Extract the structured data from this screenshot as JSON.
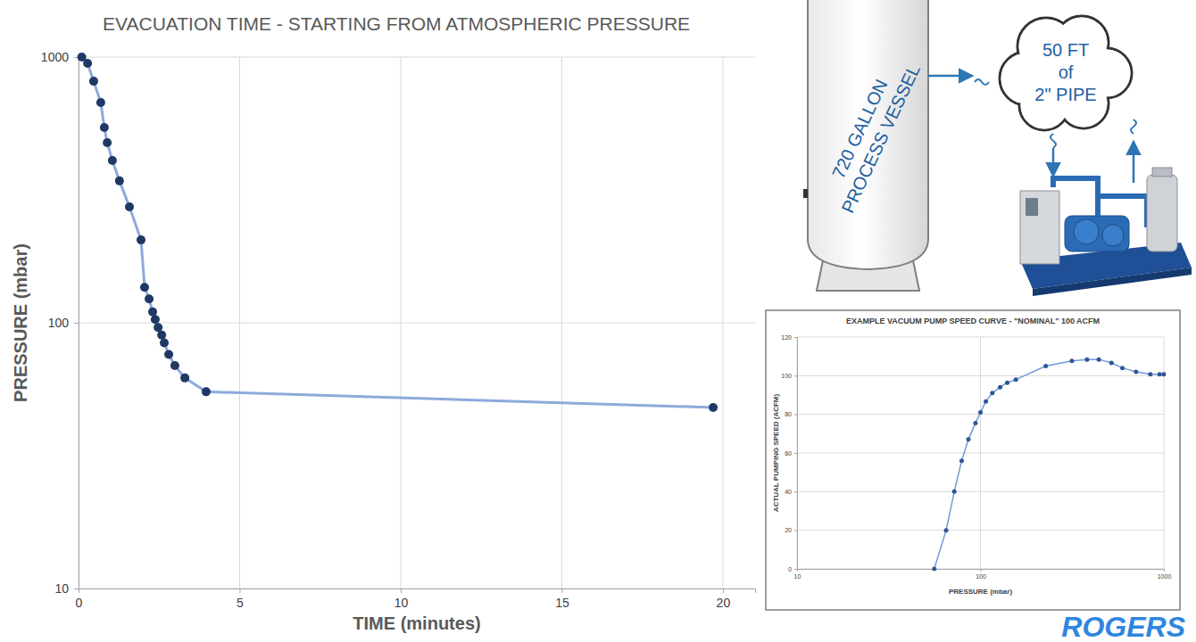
{
  "chart_data": [
    {
      "type": "line",
      "title": "EVACUATION TIME - STARTING FROM ATMOSPHERIC PRESSURE",
      "xlabel": "TIME (minutes)",
      "ylabel": "PRESSURE (mbar)",
      "x": [
        0.1,
        0.28,
        0.47,
        0.69,
        0.8,
        0.89,
        1.05,
        1.27,
        1.58,
        1.94,
        2.05,
        2.19,
        2.3,
        2.38,
        2.47,
        2.58,
        2.66,
        2.8,
        2.99,
        3.3,
        3.96,
        19.7
      ],
      "values": [
        1000,
        947,
        811,
        674,
        543,
        476,
        408,
        342,
        273,
        205,
        136,
        123,
        110,
        103,
        96,
        90,
        84,
        76,
        69,
        62,
        55,
        48
      ],
      "color": "#8eaadb",
      "marker": "circle",
      "log": "y",
      "grid": true,
      "xlim": [
        0,
        21
      ],
      "xticks": [
        0,
        5,
        10,
        15,
        20
      ],
      "ylim": [
        10,
        1000
      ],
      "yticks": [
        10,
        100,
        1000
      ]
    },
    {
      "type": "line",
      "title": "EXAMPLE VACUUM PUMP SPEED CURVE - \"NOMINAL\" 100 ACFM",
      "xlabel": "PRESSURE (mbar)",
      "ylabel": "ACTUAL PUMPING SPEED (ACFM)",
      "x": [
        56,
        65,
        72,
        79,
        86,
        94,
        100,
        107,
        116,
        128,
        140,
        156,
        227,
        315,
        381,
        442,
        518,
        594,
        705,
        844,
        948,
        1000
      ],
      "values": [
        0,
        20,
        40,
        56,
        67,
        75.5,
        81,
        86.7,
        91,
        94,
        96.4,
        98,
        105,
        107.6,
        108.4,
        108.4,
        106.6,
        104,
        102,
        100.7,
        100.7,
        100.7
      ],
      "color": "#6f9bd8",
      "marker": "circle",
      "log": "x",
      "grid": true,
      "xlim": [
        10,
        1000
      ],
      "xticks": [
        10,
        100,
        1000
      ],
      "ylim": [
        0,
        120
      ],
      "yticks": [
        0,
        20,
        40,
        60,
        80,
        100,
        120
      ]
    }
  ],
  "diagram": {
    "vessel_label": [
      "720 GALLON",
      "PROCESS VESSEL"
    ],
    "pipe_label": [
      "50 FT",
      "of",
      "2\" PIPE"
    ],
    "logo": "ROGERS"
  }
}
